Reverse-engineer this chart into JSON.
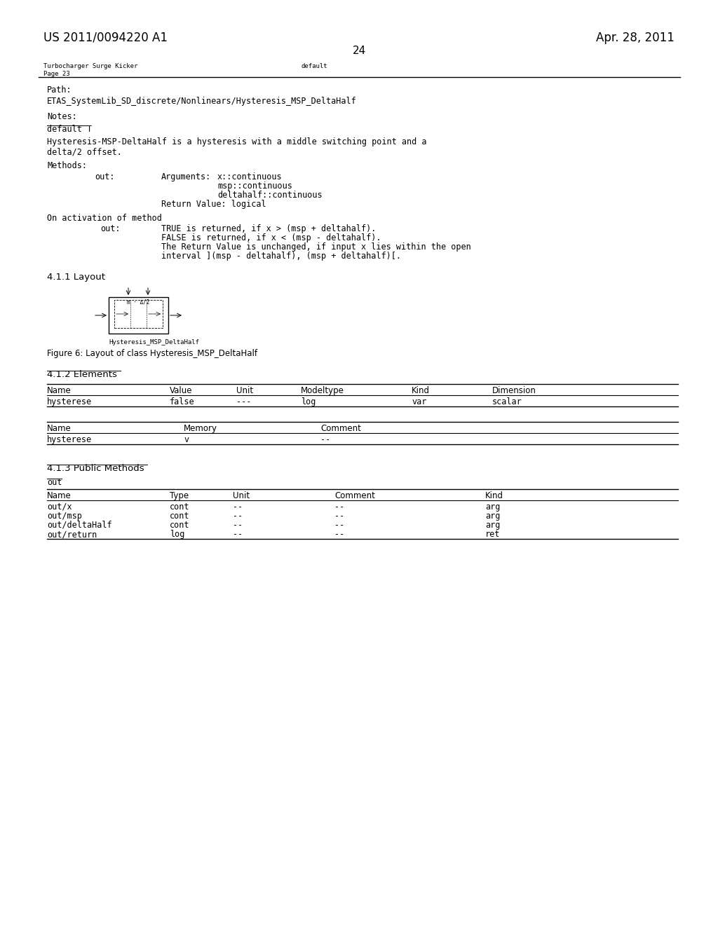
{
  "bg_color": "#ffffff",
  "header_left": "US 2011/0094220 A1",
  "header_right": "Apr. 28, 2011",
  "page_number": "24",
  "table_header_left": "Turbocharger Surge Kicker",
  "table_header_right": "default",
  "table_header_sub": "Page 23",
  "path_value": "ETAS_SystemLib_SD_discrete/Nonlinears/Hysteresis_MSP_DeltaHalf",
  "description_line1": "Hysteresis-MSP-DeltaHalf is a hysteresis with a middle switching point and a",
  "description_line2": "delta/2 offset.",
  "arg1": "x::continuous",
  "arg2": "msp::continuous",
  "arg3": "deltahalf::continuous",
  "activation_line1": "TRUE is returned, if x > (msp + deltahalf).",
  "activation_line2": "FALSE is returned, if x < (msp - deltahalf).",
  "activation_line3": "The Return Value is unchanged, if input x lies within the open",
  "activation_line4": "interval ](msp - deltahalf), (msp + deltahalf)[.",
  "section411": "4.1.1 Layout",
  "figure_caption": "Figure 6: Layout of class Hysteresis_MSP_DeltaHalf",
  "diagram_label": "Hysteresis_MSP_DeltaHalf",
  "section412": "4.1.2 Elements",
  "table1_headers": [
    "Name",
    "Value",
    "Unit",
    "Modeltype",
    "Kind",
    "Dimension"
  ],
  "table1_row": [
    "hysterese",
    "false",
    "---",
    "log",
    "var",
    "scalar"
  ],
  "table2_headers": [
    "Name",
    "Memory",
    "Comment"
  ],
  "table2_row": [
    "hysterese",
    "v",
    "--"
  ],
  "section413": "4.1.3 Public Methods",
  "out_label": "out",
  "table3_headers": [
    "Name",
    "Type",
    "Unit",
    "Comment",
    "Kind"
  ],
  "table3_rows": [
    [
      "out/x",
      "cont",
      "--",
      "--",
      "arg"
    ],
    [
      "out/msp",
      "cont",
      "--",
      "--",
      "arg"
    ],
    [
      "out/deltaHalf",
      "cont",
      "--",
      "--",
      "arg"
    ],
    [
      "out/return",
      "log",
      "--",
      "--",
      "ret"
    ]
  ]
}
